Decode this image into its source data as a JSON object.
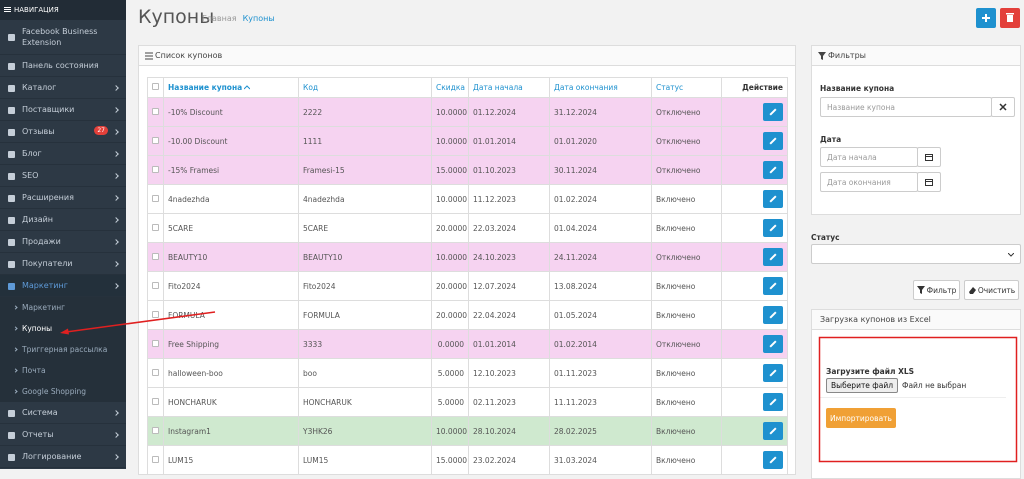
{
  "sidebar": {
    "title": "НАВИГАЦИЯ",
    "items": [
      {
        "label": "Facebook Business Extension"
      },
      {
        "label": "Панель состояния"
      },
      {
        "label": "Каталог"
      },
      {
        "label": "Поставщики"
      },
      {
        "label": "Отзывы",
        "badge": 27
      },
      {
        "label": "Блог"
      },
      {
        "label": "SEO"
      },
      {
        "label": "Расширения"
      },
      {
        "label": "Дизайн"
      },
      {
        "label": "Продажи"
      },
      {
        "label": "Покупатели"
      },
      {
        "label": "Маркетинг",
        "children": [
          "Маркетинг",
          "Купоны",
          "Триггерная рассылка",
          "Почта",
          "Google Shopping"
        ]
      },
      {
        "label": "Система"
      },
      {
        "label": "Отчеты"
      },
      {
        "label": "Логгирование"
      }
    ]
  },
  "header": {
    "title": "Купоны",
    "breadcrumb": [
      "Главная",
      "Купоны"
    ]
  },
  "list": {
    "title": "Список купонов",
    "columns": [
      "Название купона",
      "Код",
      "Скидка",
      "Дата начала",
      "Дата окончания",
      "Статус",
      "Действие"
    ],
    "rows": [
      {
        "cells": [
          "-10% Discount",
          "2222",
          "10.0000",
          "01.12.2024",
          "31.12.2024",
          "Отключено"
        ],
        "color": "#f6d3f1"
      },
      {
        "cells": [
          "-10.00 Discount",
          "1111",
          "10.0000",
          "01.01.2014",
          "01.01.2020",
          "Отключено"
        ],
        "color": "#f6d3f1"
      },
      {
        "cells": [
          "-15% Framesi",
          "Framesi-15",
          "15.0000",
          "01.10.2023",
          "30.11.2024",
          "Отключено"
        ],
        "color": "#f6d3f1"
      },
      {
        "cells": [
          "4nadezhda",
          "4nadezhda",
          "10.0000",
          "11.12.2023",
          "01.02.2024",
          "Включено"
        ]
      },
      {
        "cells": [
          "5CARE",
          "5CARE",
          "20.0000",
          "22.03.2024",
          "01.04.2024",
          "Включено"
        ]
      },
      {
        "cells": [
          "BEAUTY10",
          "BEAUTY10",
          "10.0000",
          "24.10.2023",
          "24.11.2024",
          "Отключено"
        ],
        "color": "#f6d3f1"
      },
      {
        "cells": [
          "Fito2024",
          "Fito2024",
          "20.0000",
          "12.07.2024",
          "13.08.2024",
          "Включено"
        ]
      },
      {
        "cells": [
          "FORMULA",
          "FORMULA",
          "20.0000",
          "22.04.2024",
          "01.05.2024",
          "Включено"
        ]
      },
      {
        "cells": [
          "Free Shipping",
          "3333",
          "0.0000",
          "01.01.2014",
          "01.02.2014",
          "Отключено"
        ],
        "color": "#f6d3f1"
      },
      {
        "cells": [
          "halloween-boo",
          "boo",
          "5.0000",
          "12.10.2023",
          "01.11.2023",
          "Включено"
        ]
      },
      {
        "cells": [
          "HONCHARUK",
          "HONCHARUK",
          "5.0000",
          "02.11.2023",
          "11.11.2023",
          "Включено"
        ]
      },
      {
        "cells": [
          "Instagram1",
          "Y3HK26",
          "10.0000",
          "28.10.2024",
          "28.02.2025",
          "Включено"
        ],
        "color": "#cfe9cf"
      },
      {
        "cells": [
          "LUM15",
          "LUM15",
          "15.0000",
          "23.02.2024",
          "31.03.2024",
          "Включено"
        ]
      }
    ]
  },
  "filters": {
    "title": "Фильтры",
    "name_label": "Название купона",
    "name_placeholder": "Название купона",
    "date_label": "Дата",
    "date_start_placeholder": "Дата начала",
    "date_end_placeholder": "Дата окончания",
    "status_label": "Статус",
    "filter_button": "Фильтр",
    "clear_button": "Очистить"
  },
  "upload": {
    "title": "Загрузка купонов из Excel",
    "file_label": "Загрузите файл XLS",
    "file_button": "Выберите файл",
    "file_status": "Файл не выбран",
    "import_button": "Импортировать"
  }
}
